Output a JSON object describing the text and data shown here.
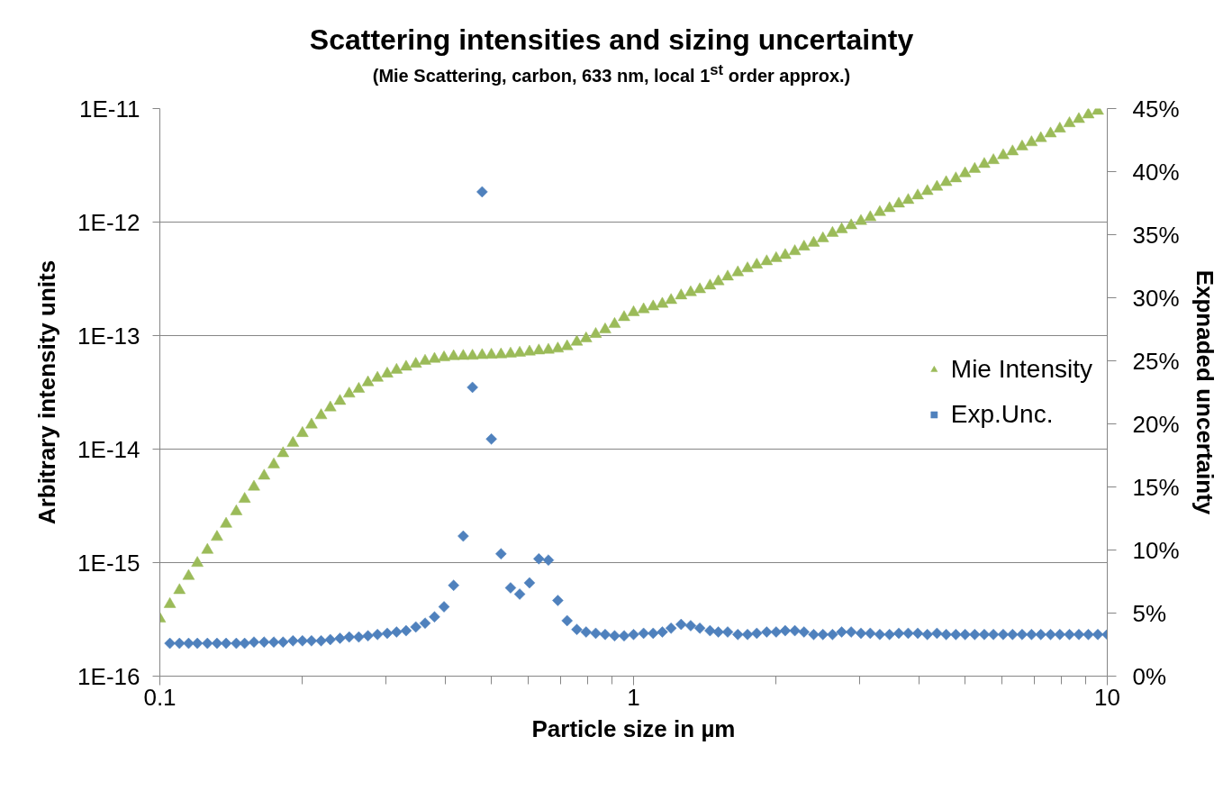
{
  "chart_data": {
    "type": "scatter",
    "title": "Scattering intensities and sizing uncertainty",
    "subtitle": "(Mie Scattering, carbon, 633 nm, local 1$^{st}$ order approx.)",
    "xlabel": "Particle size in µm",
    "ylabel": "Arbitrary intensity units",
    "y2label": "Expnaded uncertainty",
    "log": "xy",
    "grid": "y",
    "legend": "right",
    "xlim": [
      0.1,
      10
    ],
    "xticks": [
      0.1,
      1,
      10
    ],
    "ylim": [
      1e-16,
      1e-11
    ],
    "yticks": [
      {
        "value": 1e-16,
        "label": "1E-16"
      },
      {
        "value": 1e-15,
        "label": "1E-15"
      },
      {
        "value": 1e-14,
        "label": "1E-14"
      },
      {
        "value": 1e-13,
        "label": "1E-13"
      },
      {
        "value": 1e-12,
        "label": "1E-12"
      },
      {
        "value": 1e-11,
        "label": "1E-11"
      }
    ],
    "y2lim": [
      0,
      45
    ],
    "y2ticks": [
      {
        "value": 0,
        "label": "0%"
      },
      {
        "value": 5,
        "label": "5%"
      },
      {
        "value": 10,
        "label": "10%"
      },
      {
        "value": 15,
        "label": "15%"
      },
      {
        "value": 20,
        "label": "20%"
      },
      {
        "value": 25,
        "label": "25%"
      },
      {
        "value": 30,
        "label": "30%"
      },
      {
        "value": 35,
        "label": "35%"
      },
      {
        "value": 40,
        "label": "40%"
      },
      {
        "value": 45,
        "label": "45%"
      }
    ],
    "x": [
      0.1,
      0.105,
      0.11,
      0.115,
      0.12,
      0.126,
      0.132,
      0.138,
      0.145,
      0.151,
      0.158,
      0.166,
      0.174,
      0.182,
      0.191,
      0.2,
      0.209,
      0.219,
      0.229,
      0.24,
      0.251,
      0.263,
      0.275,
      0.288,
      0.302,
      0.316,
      0.331,
      0.347,
      0.363,
      0.38,
      0.398,
      0.417,
      0.437,
      0.457,
      0.479,
      0.501,
      0.525,
      0.55,
      0.575,
      0.603,
      0.631,
      0.661,
      0.692,
      0.724,
      0.759,
      0.794,
      0.832,
      0.871,
      0.912,
      0.955,
      1,
      1.05,
      1.1,
      1.15,
      1.2,
      1.26,
      1.32,
      1.38,
      1.45,
      1.51,
      1.58,
      1.66,
      1.74,
      1.82,
      1.91,
      2,
      2.09,
      2.19,
      2.29,
      2.4,
      2.51,
      2.63,
      2.75,
      2.88,
      3.02,
      3.16,
      3.31,
      3.47,
      3.63,
      3.8,
      3.98,
      4.17,
      4.37,
      4.57,
      4.79,
      5.01,
      5.25,
      5.5,
      5.75,
      6.03,
      6.31,
      6.61,
      6.92,
      7.24,
      7.59,
      7.94,
      8.32,
      8.71,
      9.12,
      9.55,
      10
    ],
    "series": [
      {
        "name": "Mie Intensity",
        "color": "#9bbb59",
        "marker": "triangle",
        "values": [
          3.2e-16,
          4.3e-16,
          5.7e-16,
          7.6e-16,
          9.9e-16,
          1.29e-15,
          1.68e-15,
          2.19e-15,
          2.82e-15,
          3.63e-15,
          4.65e-15,
          5.81e-15,
          7.31e-15,
          9.16e-15,
          1.13e-14,
          1.38e-14,
          1.64e-14,
          1.98e-14,
          2.32e-14,
          2.65e-14,
          3.07e-14,
          3.38e-14,
          3.86e-14,
          4.23e-14,
          4.61e-14,
          4.98e-14,
          5.3e-14,
          5.62e-14,
          5.98e-14,
          6.22e-14,
          6.41e-14,
          6.56e-14,
          6.6e-14,
          6.62e-14,
          6.71e-14,
          6.76e-14,
          6.8e-14,
          6.92e-14,
          7.03e-14,
          7.2e-14,
          7.37e-14,
          7.48e-14,
          7.66e-14,
          8.02e-14,
          8.79e-14,
          9.42e-14,
          1.03e-13,
          1.13e-13,
          1.26e-13,
          1.45e-13,
          1.6e-13,
          1.7e-13,
          1.8e-13,
          1.9e-13,
          2.05e-13,
          2.25e-13,
          2.4e-13,
          2.55e-13,
          2.75e-13,
          3e-13,
          3.3e-13,
          3.6e-13,
          3.9e-13,
          4.2e-13,
          4.5e-13,
          4.8e-13,
          5.11e-13,
          5.52e-13,
          6.06e-13,
          6.55e-13,
          7.17e-13,
          7.99e-13,
          8.62e-13,
          9.33e-13,
          1.02e-12,
          1.1e-12,
          1.22e-12,
          1.32e-12,
          1.45e-12,
          1.56e-12,
          1.71e-12,
          1.87e-12,
          2.04e-12,
          2.24e-12,
          2.42e-12,
          2.68e-12,
          2.93e-12,
          3.24e-12,
          3.5e-12,
          3.87e-12,
          4.18e-12,
          4.62e-12,
          5.03e-12,
          5.47e-12,
          6.01e-12,
          6.64e-12,
          7.4e-12,
          8.05e-12,
          8.83e-12,
          9.53e-12,
          null
        ]
      },
      {
        "name": "Exp.Unc.",
        "color": "#4f81bd",
        "marker": "diamond",
        "axis": "y2",
        "values": [
          null,
          2.6,
          2.6,
          2.6,
          2.6,
          2.6,
          2.6,
          2.6,
          2.6,
          2.6,
          2.7,
          2.7,
          2.7,
          2.7,
          2.8,
          2.8,
          2.8,
          2.8,
          2.9,
          3.0,
          3.1,
          3.1,
          3.2,
          3.3,
          3.4,
          3.5,
          3.6,
          3.9,
          4.2,
          4.7,
          5.5,
          7.2,
          11.1,
          22.9,
          38.4,
          18.8,
          9.7,
          7.0,
          6.5,
          7.4,
          9.3,
          9.2,
          6.0,
          4.4,
          3.7,
          3.5,
          3.4,
          3.3,
          3.2,
          3.2,
          3.3,
          3.4,
          3.4,
          3.5,
          3.8,
          4.1,
          4.0,
          3.8,
          3.6,
          3.5,
          3.5,
          3.3,
          3.3,
          3.4,
          3.5,
          3.5,
          3.6,
          3.6,
          3.5,
          3.3,
          3.3,
          3.3,
          3.5,
          3.5,
          3.4,
          3.4,
          3.3,
          3.3,
          3.4,
          3.4,
          3.4,
          3.3,
          3.4,
          3.3,
          3.3,
          3.3,
          3.3,
          3.3,
          3.3,
          3.3,
          3.3,
          3.3,
          3.3,
          3.3,
          3.3,
          3.3,
          3.3,
          3.3,
          3.3,
          3.3,
          3.3
        ]
      }
    ]
  }
}
